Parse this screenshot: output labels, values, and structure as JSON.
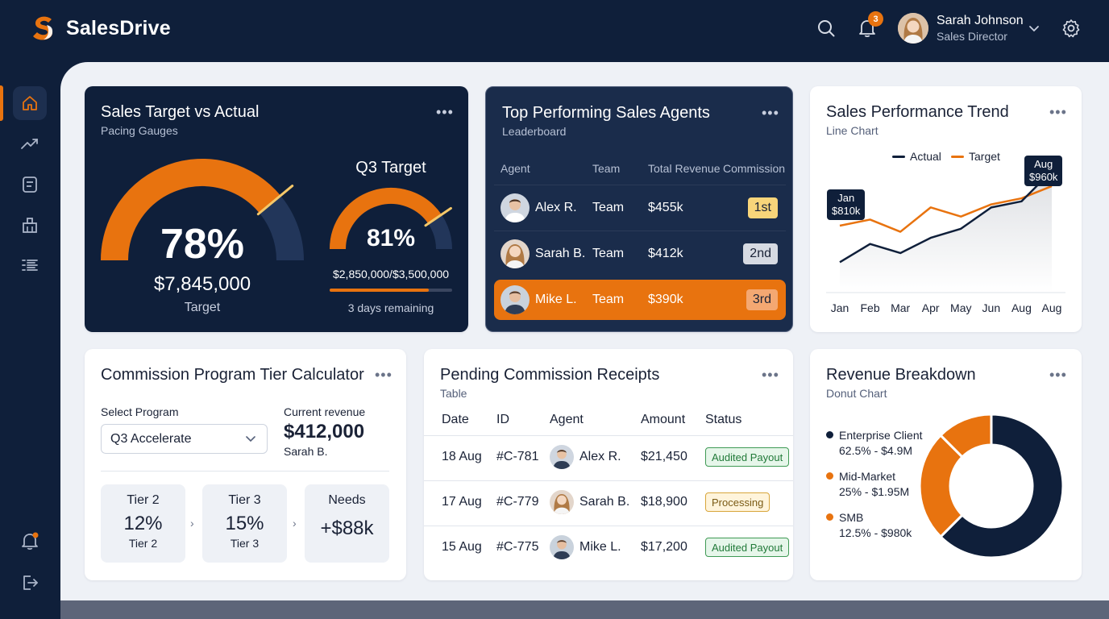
{
  "app": {
    "name": "SalesDrive"
  },
  "header": {
    "notification_count": "3",
    "user_name": "Sarah Johnson",
    "user_role": "Sales Director"
  },
  "gauges": {
    "title": "Sales Target vs Actual",
    "subtitle": "Pacing Gauges",
    "main_pct_value": 0.78,
    "main_pct": "78%",
    "main_amount": "$7,845,000",
    "main_label": "Target",
    "q3_title": "Q3 Target",
    "q3_pct_value": 0.81,
    "q3_pct": "81%",
    "q3_amount": "$2,850,000/$3,500,000",
    "q3_progress": 0.81,
    "q3_remaining": "3 days remaining"
  },
  "leaderboard": {
    "title": "Top Performing Sales Agents",
    "subtitle": "Leaderboard",
    "columns": [
      "Agent",
      "Team",
      "Total Revenue",
      "Commission"
    ],
    "rows": [
      {
        "name": "Alex R.",
        "team": "Team",
        "revenue": "$455k",
        "rank": "1st",
        "rank_color": "#f8d57a"
      },
      {
        "name": "Sarah B.",
        "team": "Team",
        "revenue": "$412k",
        "rank": "2nd",
        "rank_color": "#d6dae2"
      },
      {
        "name": "Mike L.",
        "team": "Team",
        "revenue": "$390k",
        "rank": "3rd",
        "rank_color": "#f4a872"
      }
    ]
  },
  "trend": {
    "title": "Sales Performance Trend",
    "subtitle": "Line Chart",
    "legend_actual": "Actual",
    "legend_target": "Target",
    "tooltip_start_month": "Jan",
    "tooltip_start_value": "$810k",
    "tooltip_end_month": "Aug",
    "tooltip_end_value": "$960k"
  },
  "calculator": {
    "title": "Commission Program Tier Calculator",
    "select_label": "Select Program",
    "select_value": "Q3 Accelerate",
    "revenue_label": "Current revenue",
    "revenue_value": "$412,000",
    "revenue_person": "Sarah B.",
    "tiers": [
      {
        "name": "Tier 2",
        "pct": "12%",
        "sub": "Tier 2"
      },
      {
        "name": "Tier 3",
        "pct": "15%",
        "sub": "Tier 3"
      },
      {
        "name": "Needs",
        "pct": "+$88k",
        "sub": ""
      }
    ]
  },
  "pending": {
    "title": "Pending Commission Receipts",
    "subtitle": "Table",
    "columns": [
      "Date",
      "ID",
      "Agent",
      "Amount",
      "Status"
    ],
    "rows": [
      {
        "date": "18 Aug",
        "id": "#C-781",
        "agent": "Alex R.",
        "amount": "$21,450",
        "status": "Audited Payout",
        "status_kind": "green"
      },
      {
        "date": "17 Aug",
        "id": "#C-779",
        "agent": "Sarah B.",
        "amount": "$18,900",
        "status": "Processing",
        "status_kind": "yellow"
      },
      {
        "date": "15 Aug",
        "id": "#C-775",
        "agent": "Mike L.",
        "amount": "$17,200",
        "status": "Audited Payout",
        "status_kind": "green"
      }
    ]
  },
  "breakdown": {
    "title": "Revenue Breakdown",
    "subtitle": "Donut Chart",
    "items": [
      {
        "label": "Enterprise Client",
        "value": "62.5% - $4.9M",
        "color": "#0f1f3a"
      },
      {
        "label": "Mid-Market",
        "value": "25% - $1.95M",
        "color": "#e8730f"
      },
      {
        "label": "SMB",
        "value": "12.5% - $980k",
        "color": "#e8730f"
      }
    ]
  },
  "chart_data": [
    {
      "type": "line",
      "title": "Sales Performance Trend",
      "x": [
        "Jan",
        "Feb",
        "Mar",
        "Apr",
        "May",
        "Jun",
        "Aug",
        "Aug"
      ],
      "series": [
        {
          "name": "Actual",
          "values": [
            810,
            840,
            825,
            850,
            865,
            900,
            910,
            960
          ],
          "color": "#0f1f3a"
        },
        {
          "name": "Target",
          "values": [
            870,
            880,
            860,
            900,
            885,
            905,
            915,
            935
          ],
          "color": "#e8730f"
        }
      ],
      "ylim": [
        760,
        980
      ],
      "legend": "top-right",
      "grid": false
    },
    {
      "type": "pie",
      "title": "Revenue Breakdown",
      "labels": [
        "Enterprise Client",
        "Mid-Market",
        "SMB"
      ],
      "values": [
        62.5,
        25,
        12.5
      ],
      "colors": [
        "#0f1f3a",
        "#e8730f",
        "#e8730f"
      ]
    }
  ]
}
